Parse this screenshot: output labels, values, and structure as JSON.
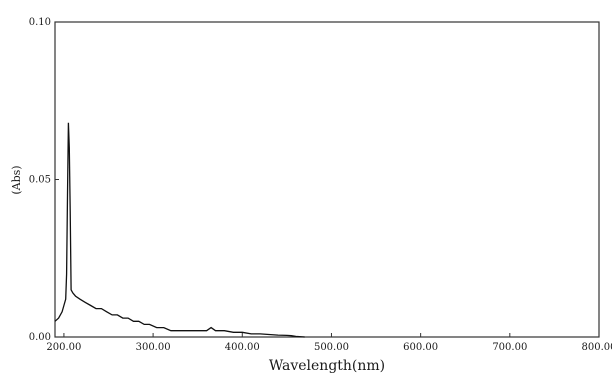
{
  "chart_data": {
    "type": "line",
    "title": "",
    "xlabel": "Wavelength(nm)",
    "ylabel": "(Abs)",
    "xlim": [
      190,
      800
    ],
    "ylim": [
      0.0,
      0.1
    ],
    "x_ticks": [
      200,
      300,
      400,
      500,
      600,
      700,
      800
    ],
    "x_tick_labels": [
      "200.00",
      "300.00",
      "400.00",
      "500.00",
      "600.00",
      "700.00",
      "800.00"
    ],
    "y_ticks": [
      0.0,
      0.05,
      0.1
    ],
    "y_tick_labels": [
      "0.00",
      "0.05",
      "0.10"
    ],
    "grid": false,
    "series": [
      {
        "name": "",
        "color": "#111111",
        "x": [
          190,
          194,
          198,
          200,
          202,
          203,
          204,
          205,
          206,
          207,
          208,
          210,
          213,
          218,
          224,
          230,
          236,
          242,
          248,
          254,
          260,
          266,
          272,
          278,
          284,
          290,
          296,
          304,
          312,
          320,
          330,
          340,
          350,
          360,
          365,
          370,
          380,
          390,
          400,
          410,
          420,
          430,
          440,
          450,
          455,
          460,
          470
        ],
        "y": [
          0.005,
          0.006,
          0.008,
          0.01,
          0.012,
          0.02,
          0.045,
          0.068,
          0.06,
          0.04,
          0.015,
          0.014,
          0.013,
          0.012,
          0.011,
          0.01,
          0.009,
          0.009,
          0.008,
          0.007,
          0.007,
          0.006,
          0.006,
          0.005,
          0.005,
          0.004,
          0.004,
          0.003,
          0.003,
          0.002,
          0.002,
          0.002,
          0.002,
          0.002,
          0.003,
          0.002,
          0.002,
          0.0015,
          0.0015,
          0.001,
          0.001,
          0.0008,
          0.0006,
          0.0005,
          0.0004,
          0.0002,
          0.0
        ]
      }
    ]
  }
}
